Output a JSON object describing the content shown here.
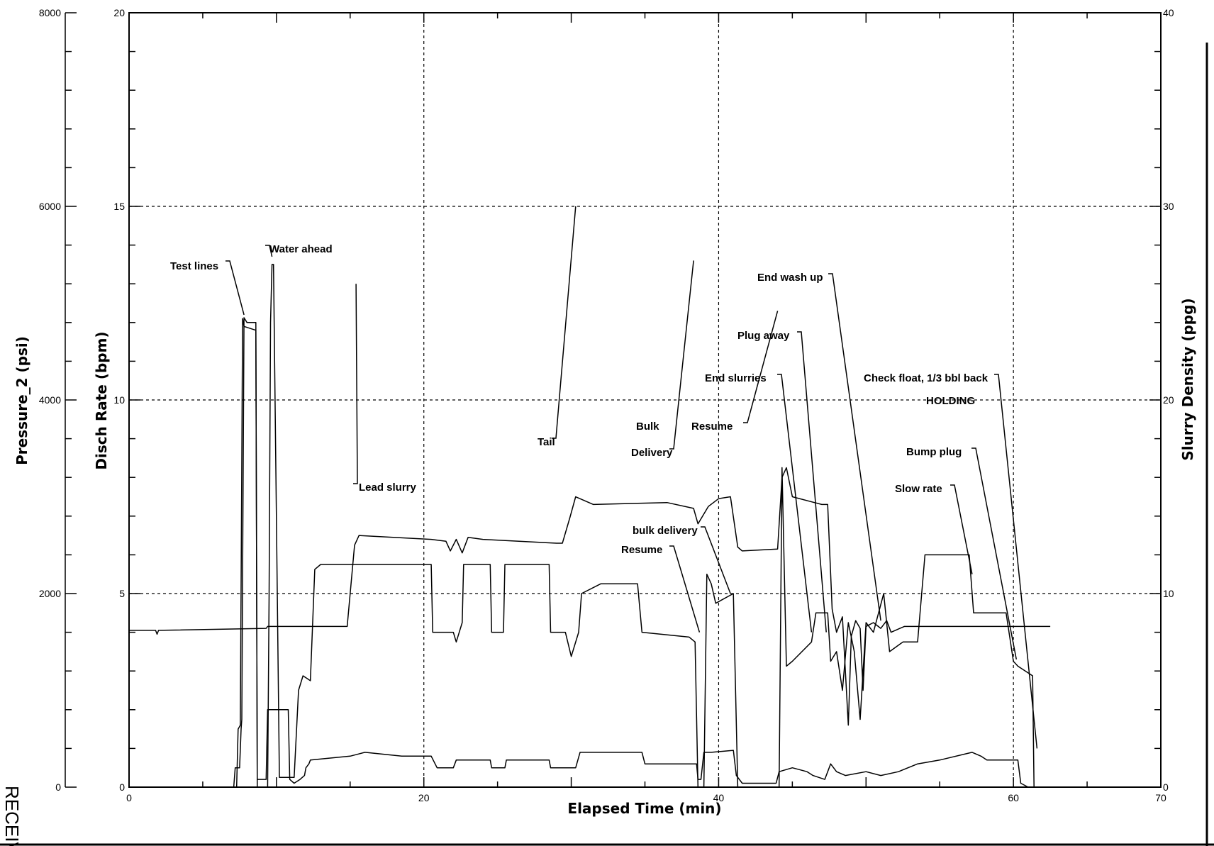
{
  "chart_data": {
    "type": "line",
    "xlabel": "Elapsed Time (min)",
    "x_range": [
      0,
      70
    ],
    "x_ticks": [
      "0",
      "20",
      "40",
      "60",
      "70"
    ],
    "y_axes": [
      {
        "label": "Pressure_2 (psi)",
        "range": [
          0,
          8000
        ],
        "ticks": [
          "0",
          "2000",
          "4000",
          "6000",
          "8000"
        ]
      },
      {
        "label": "Disch Rate (bpm)",
        "range": [
          0,
          20
        ],
        "ticks": [
          "0",
          "5",
          "10",
          "15",
          "20"
        ]
      },
      {
        "label": "Slurry Density (ppg)",
        "range": [
          0,
          40
        ],
        "ticks": [
          "0",
          "10",
          "20",
          "30",
          "40"
        ]
      }
    ],
    "grid": "dashed",
    "series": [
      {
        "axis": "density",
        "points": [
          [
            0,
            8.1
          ],
          [
            1.8,
            8.1
          ],
          [
            1.9,
            7.9
          ],
          [
            2.0,
            8.1
          ],
          [
            9.3,
            8.2
          ],
          [
            9.4,
            8.3
          ],
          [
            14.8,
            8.3
          ],
          [
            15.3,
            12.5
          ],
          [
            15.6,
            13.0
          ],
          [
            20.5,
            12.8
          ],
          [
            21.5,
            12.7
          ],
          [
            21.8,
            12.2
          ],
          [
            22.2,
            12.8
          ],
          [
            22.6,
            12.1
          ],
          [
            23.0,
            12.9
          ],
          [
            24.0,
            12.8
          ],
          [
            29.0,
            12.6
          ],
          [
            29.4,
            12.6
          ],
          [
            29.9,
            13.9
          ],
          [
            30.3,
            15.0
          ],
          [
            31.5,
            14.6
          ],
          [
            36.5,
            14.7
          ],
          [
            38.3,
            14.4
          ],
          [
            38.6,
            13.6
          ],
          [
            39.3,
            14.5
          ],
          [
            40.0,
            14.9
          ],
          [
            40.8,
            15.0
          ],
          [
            41.3,
            12.4
          ],
          [
            41.6,
            12.2
          ],
          [
            44.0,
            12.3
          ],
          [
            44.3,
            16.0
          ],
          [
            44.6,
            16.5
          ],
          [
            45.0,
            15.0
          ],
          [
            47.0,
            14.6
          ],
          [
            47.4,
            14.6
          ],
          [
            47.7,
            9.2
          ],
          [
            48.0,
            8.0
          ],
          [
            48.4,
            8.8
          ],
          [
            48.8,
            3.2
          ],
          [
            49.0,
            7.8
          ],
          [
            49.3,
            8.6
          ],
          [
            49.6,
            8.2
          ],
          [
            49.8,
            5.0
          ],
          [
            50.0,
            8.3
          ],
          [
            50.5,
            8.5
          ],
          [
            51.0,
            8.2
          ],
          [
            51.4,
            8.6
          ],
          [
            51.7,
            8.0
          ],
          [
            52.3,
            8.2
          ],
          [
            52.6,
            8.3
          ],
          [
            56.5,
            8.3
          ],
          [
            60.0,
            8.3
          ],
          [
            62.5,
            8.3
          ]
        ]
      },
      {
        "axis": "rate",
        "points": [
          [
            0,
            0
          ],
          [
            7.3,
            0
          ],
          [
            7.4,
            1.5
          ],
          [
            7.55,
            1.6
          ],
          [
            7.7,
            12.1
          ],
          [
            7.8,
            11.9
          ],
          [
            8.6,
            11.8
          ],
          [
            8.7,
            0.2
          ],
          [
            9.0,
            0.2
          ],
          [
            9.3,
            0.2
          ],
          [
            9.4,
            2.0
          ],
          [
            10.8,
            2.0
          ],
          [
            10.9,
            0.2
          ],
          [
            11.2,
            0.1
          ],
          [
            11.6,
            0.2
          ],
          [
            11.9,
            0.3
          ],
          [
            12.0,
            0.5
          ],
          [
            12.2,
            0.6
          ],
          [
            12.3,
            0.7
          ],
          [
            15.0,
            0.8
          ],
          [
            16.0,
            0.9
          ],
          [
            18.5,
            0.8
          ],
          [
            20.5,
            0.8
          ],
          [
            20.9,
            0.5
          ],
          [
            22.0,
            0.5
          ],
          [
            22.2,
            0.7
          ],
          [
            24.5,
            0.7
          ],
          [
            24.6,
            0.5
          ],
          [
            25.5,
            0.5
          ],
          [
            25.6,
            0.7
          ],
          [
            28.5,
            0.7
          ],
          [
            28.6,
            0.5
          ],
          [
            30.3,
            0.5
          ],
          [
            30.6,
            0.9
          ],
          [
            34.8,
            0.9
          ],
          [
            35.0,
            0.6
          ],
          [
            38.5,
            0.6
          ],
          [
            38.6,
            0.2
          ],
          [
            38.8,
            0.2
          ],
          [
            39.0,
            0.9
          ],
          [
            39.5,
            0.9
          ],
          [
            41.0,
            0.95
          ],
          [
            41.2,
            0.3
          ],
          [
            41.6,
            0.1
          ],
          [
            43.9,
            0.1
          ],
          [
            44.1,
            0.4
          ],
          [
            45.0,
            0.5
          ],
          [
            46.0,
            0.4
          ],
          [
            46.4,
            0.3
          ],
          [
            47.2,
            0.2
          ],
          [
            47.6,
            0.6
          ],
          [
            48.0,
            0.4
          ],
          [
            48.6,
            0.3
          ],
          [
            50.0,
            0.4
          ],
          [
            51.0,
            0.3
          ],
          [
            52.2,
            0.4
          ],
          [
            53.5,
            0.6
          ],
          [
            55.0,
            0.7
          ],
          [
            57.2,
            0.9
          ],
          [
            57.8,
            0.8
          ],
          [
            58.2,
            0.7
          ],
          [
            59.5,
            0.7
          ],
          [
            60.3,
            0.7
          ],
          [
            60.5,
            0.1
          ],
          [
            61.0,
            0.0
          ]
        ]
      },
      {
        "axis": "pressure",
        "points": [
          [
            0,
            0
          ],
          [
            7.1,
            0
          ],
          [
            7.2,
            200
          ],
          [
            7.5,
            200
          ],
          [
            7.6,
            600
          ],
          [
            7.65,
            700
          ],
          [
            7.8,
            4850
          ],
          [
            8.0,
            4800
          ],
          [
            8.6,
            4800
          ],
          [
            8.7,
            0
          ],
          [
            9.4,
            0
          ],
          [
            9.5,
            2000
          ],
          [
            9.6,
            4800
          ],
          [
            9.7,
            5400
          ],
          [
            9.8,
            5400
          ],
          [
            10.2,
            100
          ],
          [
            11.0,
            100
          ],
          [
            11.2,
            100
          ],
          [
            11.5,
            1000
          ],
          [
            11.8,
            1150
          ],
          [
            12.3,
            1100
          ],
          [
            12.6,
            2250
          ],
          [
            13.0,
            2300
          ],
          [
            16.0,
            2300
          ],
          [
            20.5,
            2300
          ],
          [
            20.6,
            1600
          ],
          [
            22.0,
            1600
          ],
          [
            22.2,
            1500
          ],
          [
            22.6,
            1700
          ],
          [
            22.7,
            2300
          ],
          [
            24.5,
            2300
          ],
          [
            24.6,
            1600
          ],
          [
            25.4,
            1600
          ],
          [
            25.5,
            2300
          ],
          [
            28.5,
            2300
          ],
          [
            28.6,
            1600
          ],
          [
            29.6,
            1600
          ],
          [
            30.0,
            1350
          ],
          [
            30.5,
            1600
          ],
          [
            30.7,
            2000
          ],
          [
            32.0,
            2100
          ],
          [
            34.5,
            2100
          ],
          [
            34.8,
            1600
          ],
          [
            38.0,
            1550
          ],
          [
            38.4,
            1500
          ],
          [
            38.6,
            0
          ],
          [
            39.0,
            0
          ],
          [
            39.2,
            2200
          ],
          [
            39.5,
            2100
          ],
          [
            39.8,
            1900
          ],
          [
            41.0,
            2000
          ],
          [
            41.3,
            0
          ],
          [
            44.1,
            0
          ],
          [
            44.3,
            3300
          ],
          [
            44.6,
            1250
          ],
          [
            45.0,
            1300
          ],
          [
            46.3,
            1500
          ],
          [
            46.6,
            1800
          ],
          [
            47.4,
            1800
          ],
          [
            47.6,
            1300
          ],
          [
            48.0,
            1400
          ],
          [
            48.4,
            1000
          ],
          [
            48.8,
            1700
          ],
          [
            49.2,
            1400
          ],
          [
            49.6,
            700
          ],
          [
            50.0,
            1700
          ],
          [
            50.5,
            1600
          ],
          [
            51.2,
            2000
          ],
          [
            51.6,
            1400
          ],
          [
            52.5,
            1500
          ],
          [
            53.5,
            1500
          ],
          [
            54.0,
            2400
          ],
          [
            57.0,
            2400
          ],
          [
            57.3,
            1800
          ],
          [
            59.5,
            1800
          ],
          [
            59.8,
            1500
          ],
          [
            60.0,
            1300
          ],
          [
            60.3,
            1250
          ],
          [
            61.3,
            1150
          ],
          [
            61.4,
            0
          ],
          [
            62.0,
            0
          ]
        ]
      }
    ],
    "annotations": [
      {
        "text": "Test lines",
        "tip": [
          7.8,
          12.2
        ]
      },
      {
        "text": "Water ahead",
        "tip": [
          9.7,
          13.7
        ]
      },
      {
        "text": "Lead slurry",
        "tip": [
          15.4,
          13.0
        ]
      },
      {
        "text": "Tail",
        "tip": [
          30.3,
          15.0
        ]
      },
      {
        "text": "Bulk",
        "tip": null
      },
      {
        "text": "Delivery",
        "tip": [
          38.3,
          13.6
        ]
      },
      {
        "text": "bulk delivery",
        "tip": [
          40.8,
          5.0
        ]
      },
      {
        "text": "Resume",
        "tip": [
          38.7,
          4.0
        ]
      },
      {
        "text": "Resume",
        "tip": [
          44.0,
          12.3
        ]
      },
      {
        "text": "End slurries",
        "tip": [
          46.3,
          4.0
        ]
      },
      {
        "text": "Plug away",
        "tip": [
          47.3,
          4.0
        ]
      },
      {
        "text": "End wash up",
        "tip": [
          51.0,
          4.3
        ]
      },
      {
        "text": "Check float, 1/3 bbl back",
        "tip": [
          61.6,
          1.0
        ]
      },
      {
        "text": "HOLDING",
        "tip": null
      },
      {
        "text": "Bump plug",
        "tip": [
          60.2,
          3.3
        ]
      },
      {
        "text": "Slow rate",
        "tip": [
          57.2,
          5.5
        ]
      }
    ]
  },
  "stamp": "RECEIVED"
}
